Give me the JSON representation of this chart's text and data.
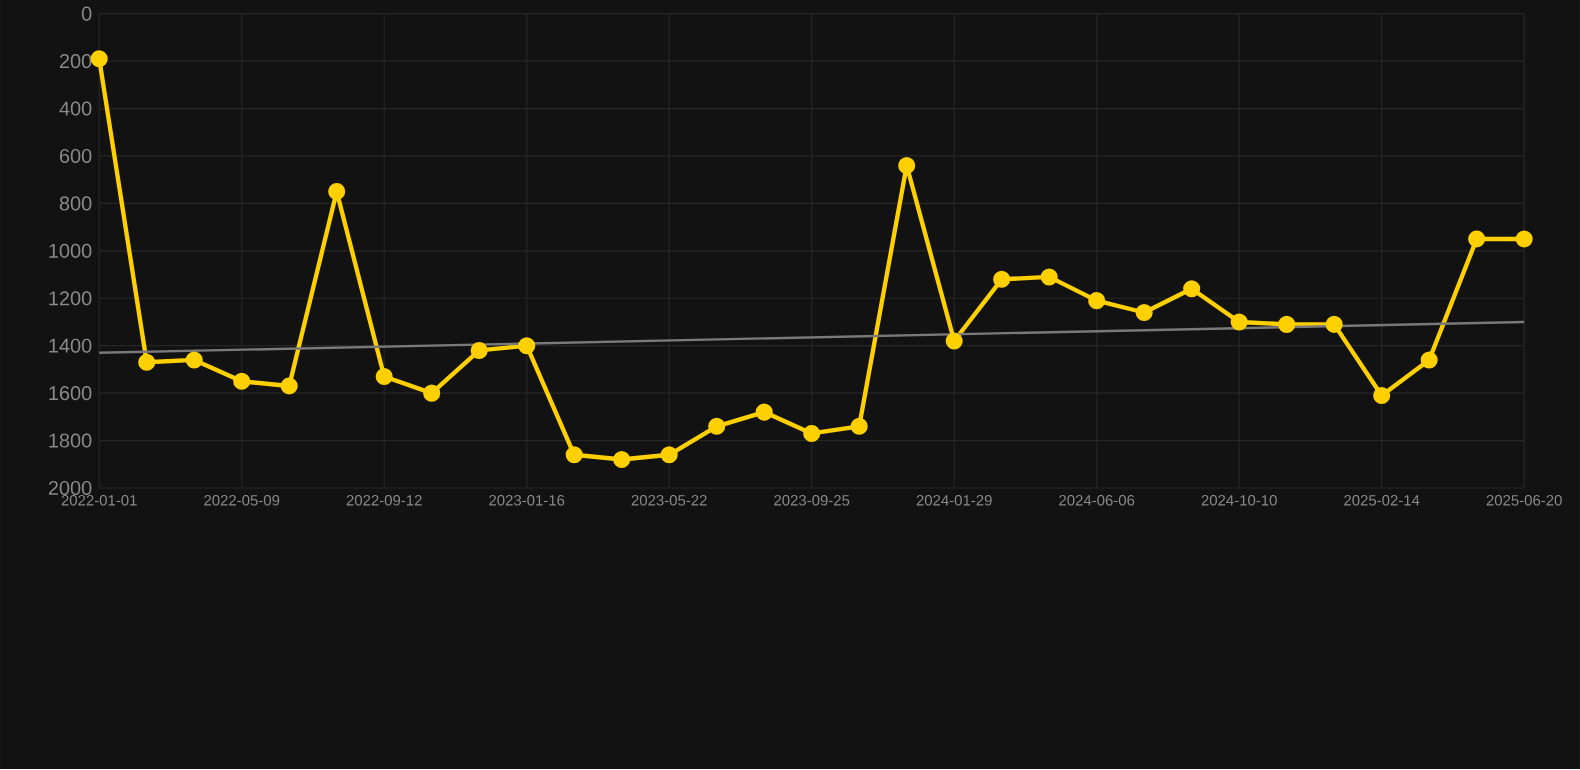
{
  "chart_data": {
    "type": "line",
    "categories": [
      "2022-01-01",
      null,
      null,
      "2022-05-09",
      null,
      null,
      "2022-09-12",
      null,
      null,
      "2023-01-16",
      null,
      null,
      "2023-05-22",
      null,
      null,
      "2023-09-25",
      null,
      null,
      "2024-01-29",
      null,
      null,
      "2024-06-06",
      null,
      null,
      "2024-10-10",
      null,
      null,
      "2025-02-14",
      null,
      null,
      "2025-06-20"
    ],
    "series": [
      {
        "color": "#ffd000",
        "marker": "circle",
        "values": [
          190,
          1470,
          1460,
          1550,
          1570,
          750,
          1530,
          1600,
          1420,
          1400,
          1860,
          1880,
          1860,
          1740,
          1680,
          1770,
          1740,
          640,
          1380,
          1120,
          1110,
          1210,
          1260,
          1160,
          1300,
          1310,
          1310,
          1610,
          1460,
          950,
          950
        ]
      },
      {
        "type": "line",
        "color": "#7a7a7a",
        "marker": "none",
        "values": [
          1430,
          null,
          null,
          null,
          null,
          null,
          null,
          null,
          null,
          null,
          null,
          null,
          null,
          null,
          null,
          null,
          null,
          null,
          null,
          null,
          null,
          null,
          null,
          null,
          null,
          null,
          null,
          null,
          null,
          null,
          1300
        ]
      }
    ],
    "ylim": [
      2000,
      0
    ],
    "yticks": [
      0,
      200,
      400,
      600,
      800,
      1000,
      1200,
      1400,
      1600,
      1800,
      2000
    ],
    "grid": true,
    "line_style": "solid"
  }
}
